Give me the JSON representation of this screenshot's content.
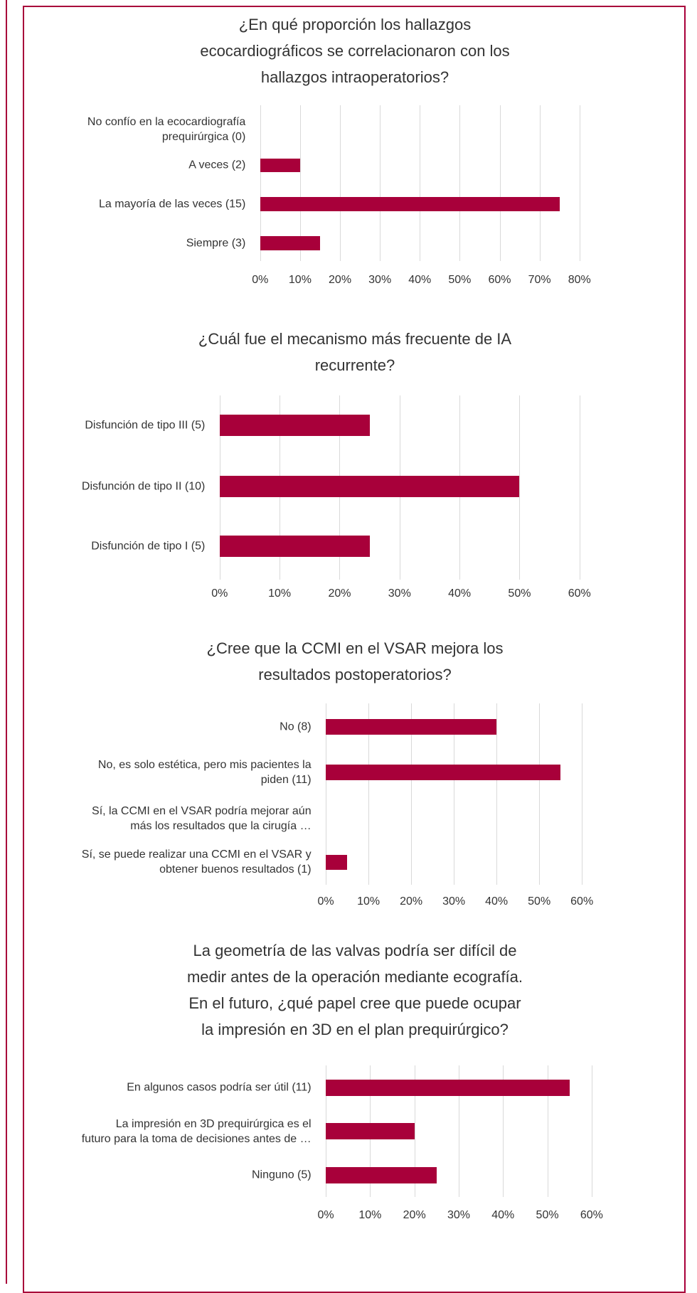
{
  "chart_data": [
    {
      "type": "barh",
      "title": "¿En qué proporción los hallazgos\necocardiográficos se correlacionaron con los\nhallazgos intraoperatorios?",
      "categories": [
        "No confío en la ecocardiografía\nprequirúrgica (0)",
        "A veces (2)",
        "La mayoría de las veces (15)",
        "Siempre (3)"
      ],
      "values": [
        0,
        10,
        75,
        15
      ],
      "color": "#a8003a",
      "grid": true,
      "xlim": [
        0,
        80
      ],
      "xticks": [
        {
          "value": 0,
          "label": "0%"
        },
        {
          "value": 10,
          "label": "10%"
        },
        {
          "value": 20,
          "label": "20%"
        },
        {
          "value": 30,
          "label": "30%"
        },
        {
          "value": 40,
          "label": "40%"
        },
        {
          "value": 50,
          "label": "50%"
        },
        {
          "value": 60,
          "label": "60%"
        },
        {
          "value": 70,
          "label": "70%"
        },
        {
          "value": 80,
          "label": "80%"
        }
      ]
    },
    {
      "type": "barh",
      "title": "¿Cuál fue el mecanismo más frecuente de IA\nrecurrente?",
      "categories": [
        "Disfunción de tipo III (5)",
        "Disfunción de tipo II (10)",
        "Disfunción de tipo I (5)"
      ],
      "values": [
        25,
        50,
        25
      ],
      "color": "#a8003a",
      "grid": true,
      "xlim": [
        0,
        60
      ],
      "xticks": [
        {
          "value": 0,
          "label": "0%"
        },
        {
          "value": 10,
          "label": "10%"
        },
        {
          "value": 20,
          "label": "20%"
        },
        {
          "value": 30,
          "label": "30%"
        },
        {
          "value": 40,
          "label": "40%"
        },
        {
          "value": 50,
          "label": "50%"
        },
        {
          "value": 60,
          "label": "60%"
        }
      ]
    },
    {
      "type": "barh",
      "title": "¿Cree que la CCMI en el VSAR mejora los\nresultados postoperatorios?",
      "categories": [
        "No (8)",
        "No, es solo estética, pero mis pacientes la\npiden (11)",
        "Sí, la CCMI en el VSAR podría mejorar aún\nmás los resultados que la cirugía …",
        "Sí, se puede realizar una CCMI en el VSAR y\nobtener buenos resultados (1)"
      ],
      "values": [
        40,
        55,
        0,
        5
      ],
      "color": "#a8003a",
      "grid": true,
      "xlim": [
        0,
        60
      ],
      "xticks": [
        {
          "value": 0,
          "label": "0%"
        },
        {
          "value": 10,
          "label": "10%"
        },
        {
          "value": 20,
          "label": "20%"
        },
        {
          "value": 30,
          "label": "30%"
        },
        {
          "value": 40,
          "label": "40%"
        },
        {
          "value": 50,
          "label": "50%"
        },
        {
          "value": 60,
          "label": "60%"
        }
      ]
    },
    {
      "type": "barh",
      "title": "La geometría de las valvas podría ser difícil de\nmedir antes de la operación mediante ecografía.\nEn el futuro, ¿qué papel cree que puede ocupar\nla impresión en 3D en el plan prequirúrgico?",
      "categories": [
        "En algunos casos podría ser útil (11)",
        "La impresión en 3D prequirúrgica es el\nfuturo para la toma de decisiones antes de …",
        "Ninguno (5)"
      ],
      "values": [
        55,
        20,
        25
      ],
      "color": "#a8003a",
      "grid": true,
      "xlim": [
        0,
        60
      ],
      "xticks": [
        {
          "value": 0,
          "label": "0%"
        },
        {
          "value": 10,
          "label": "10%"
        },
        {
          "value": 20,
          "label": "20%"
        },
        {
          "value": 30,
          "label": "30%"
        },
        {
          "value": 40,
          "label": "40%"
        },
        {
          "value": 50,
          "label": "50%"
        },
        {
          "value": 60,
          "label": "60%"
        }
      ]
    }
  ]
}
